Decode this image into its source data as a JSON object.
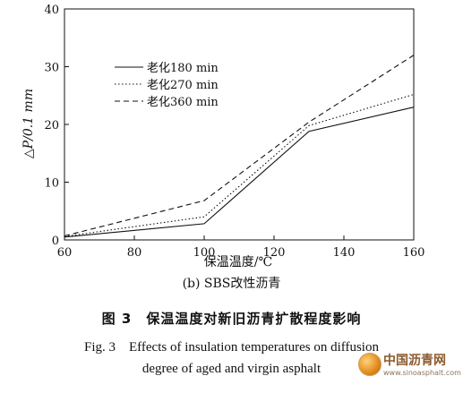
{
  "chart_data": {
    "type": "line",
    "xlabel": "保温温度/℃",
    "ylabel": "△P/0.1 mm",
    "xlim": [
      60,
      160
    ],
    "ylim": [
      0,
      40
    ],
    "xticks": [
      60,
      80,
      100,
      120,
      140,
      160
    ],
    "yticks": [
      0,
      10,
      20,
      30,
      40
    ],
    "grid": false,
    "legend_position": "top-left",
    "series": [
      {
        "name": "老化180 min",
        "style": "solid",
        "x": [
          60,
          100,
          130,
          160
        ],
        "y": [
          0.5,
          2.8,
          18.8,
          23.0
        ]
      },
      {
        "name": "老化270 min",
        "style": "dotted",
        "x": [
          60,
          100,
          130,
          160
        ],
        "y": [
          0.6,
          4.0,
          19.8,
          25.2
        ]
      },
      {
        "name": "老化360 min",
        "style": "dashed",
        "x": [
          60,
          100,
          130,
          160
        ],
        "y": [
          0.7,
          6.8,
          20.4,
          32.0
        ]
      }
    ]
  },
  "captions": {
    "subcaption": "(b) SBS改性沥青",
    "figure_cn": "图 3　保温温度对新旧沥青扩散程度影响",
    "figure_en_line1": "Fig. 3　Effects of insulation temperatures on diffusion",
    "figure_en_line2": "degree of aged and virgin asphalt"
  },
  "watermark": {
    "name": "中国沥青网",
    "url": "www.sinoasphalt.com"
  },
  "colors": {
    "line": "#111111",
    "background": "#ffffff"
  }
}
